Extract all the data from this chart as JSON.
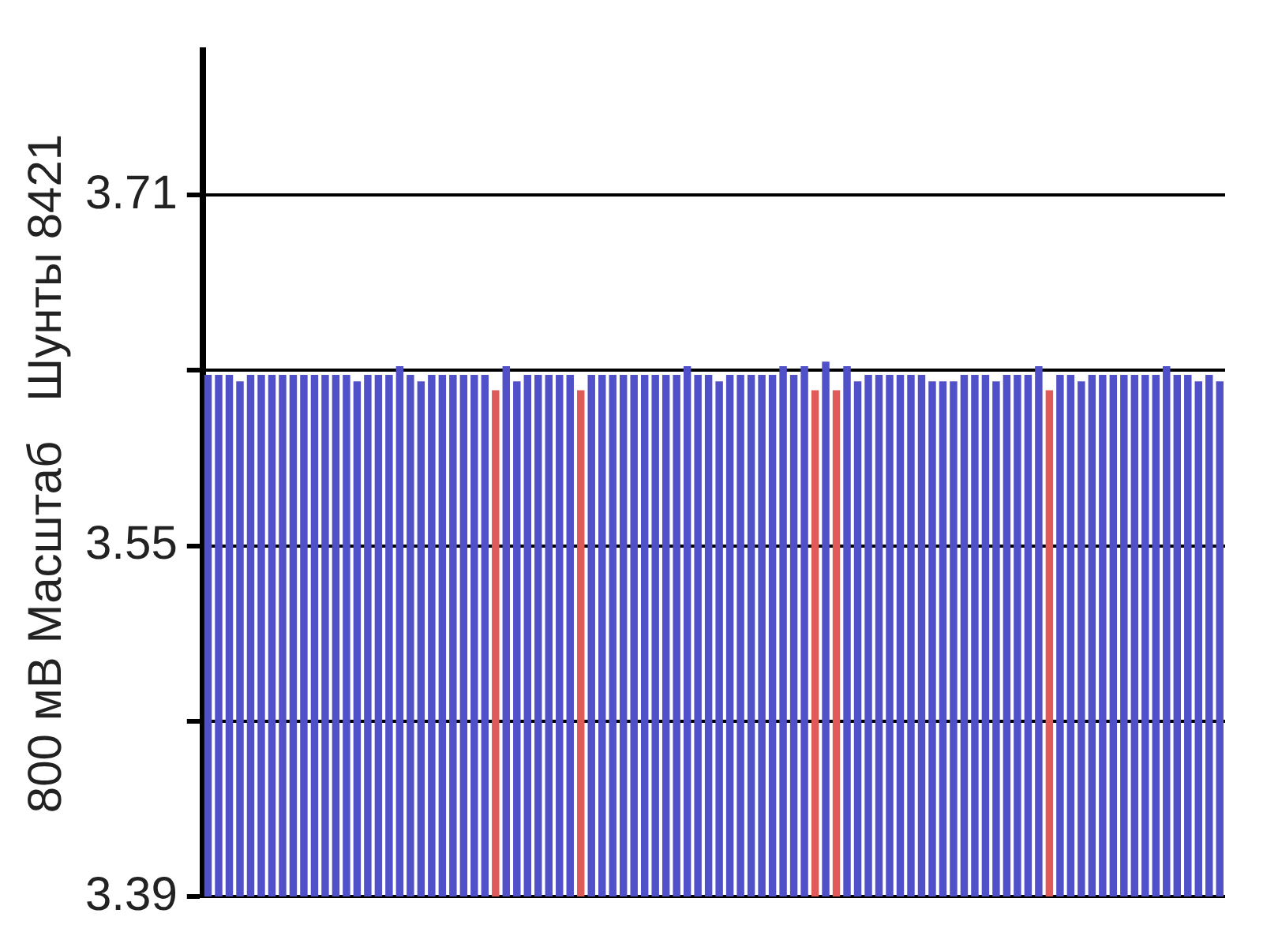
{
  "chart_data": {
    "type": "bar",
    "ylabel": "800 мВ Масштаб   Шунты 8421",
    "categories": [
      null,
      null,
      null,
      null,
      null,
      null,
      null,
      null,
      null,
      null,
      null,
      null,
      null,
      null,
      null,
      null,
      null,
      null,
      null,
      null,
      null,
      null,
      null,
      null,
      null,
      null,
      null,
      null,
      null,
      null,
      null,
      null,
      null,
      null,
      null,
      null,
      null,
      null,
      null,
      null,
      null,
      null,
      null,
      null,
      null,
      null,
      null,
      null,
      null,
      null,
      null,
      null,
      null,
      null,
      null,
      null,
      null,
      null,
      null,
      null,
      null,
      null,
      null,
      null,
      null,
      null,
      null,
      null,
      null,
      null,
      null,
      null,
      null,
      null,
      null,
      null,
      null,
      null,
      null,
      null,
      null,
      null,
      null,
      null,
      null,
      null,
      null,
      null,
      null,
      null,
      null,
      null,
      null,
      null,
      null,
      null
    ],
    "values": [
      3.628,
      3.628,
      3.628,
      3.625,
      3.628,
      3.628,
      3.628,
      3.628,
      3.628,
      3.628,
      3.628,
      3.628,
      3.628,
      3.628,
      3.625,
      3.628,
      3.628,
      3.628,
      3.632,
      3.628,
      3.625,
      3.628,
      3.628,
      3.628,
      3.628,
      3.628,
      3.628,
      3.621,
      3.632,
      3.625,
      3.628,
      3.628,
      3.628,
      3.628,
      3.628,
      3.621,
      3.628,
      3.628,
      3.628,
      3.628,
      3.628,
      3.628,
      3.628,
      3.628,
      3.628,
      3.632,
      3.628,
      3.628,
      3.625,
      3.628,
      3.628,
      3.628,
      3.628,
      3.628,
      3.632,
      3.628,
      3.632,
      3.621,
      3.634,
      3.621,
      3.632,
      3.625,
      3.628,
      3.628,
      3.628,
      3.628,
      3.628,
      3.628,
      3.625,
      3.625,
      3.625,
      3.628,
      3.628,
      3.628,
      3.625,
      3.628,
      3.628,
      3.628,
      3.632,
      3.621,
      3.628,
      3.628,
      3.625,
      3.628,
      3.628,
      3.628,
      3.628,
      3.628,
      3.628,
      3.628,
      3.632,
      3.628,
      3.628,
      3.625,
      3.628,
      3.625
    ],
    "colors": [
      "#5050c8",
      "#5050c8",
      "#5050c8",
      "#5050c8",
      "#5050c8",
      "#5050c8",
      "#5050c8",
      "#5050c8",
      "#5050c8",
      "#5050c8",
      "#5050c8",
      "#5050c8",
      "#5050c8",
      "#5050c8",
      "#5050c8",
      "#5050c8",
      "#5050c8",
      "#5050c8",
      "#5050c8",
      "#5050c8",
      "#5050c8",
      "#5050c8",
      "#5050c8",
      "#5050c8",
      "#5050c8",
      "#5050c8",
      "#5050c8",
      "#e05a5a",
      "#5050c8",
      "#5050c8",
      "#5050c8",
      "#5050c8",
      "#5050c8",
      "#5050c8",
      "#5050c8",
      "#e05a5a",
      "#5050c8",
      "#5050c8",
      "#5050c8",
      "#5050c8",
      "#5050c8",
      "#5050c8",
      "#5050c8",
      "#5050c8",
      "#5050c8",
      "#5050c8",
      "#5050c8",
      "#5050c8",
      "#5050c8",
      "#5050c8",
      "#5050c8",
      "#5050c8",
      "#5050c8",
      "#5050c8",
      "#5050c8",
      "#5050c8",
      "#5050c8",
      "#e05a5a",
      "#5050c8",
      "#e05a5a",
      "#5050c8",
      "#5050c8",
      "#5050c8",
      "#5050c8",
      "#5050c8",
      "#5050c8",
      "#5050c8",
      "#5050c8",
      "#5050c8",
      "#5050c8",
      "#5050c8",
      "#5050c8",
      "#5050c8",
      "#5050c8",
      "#5050c8",
      "#5050c8",
      "#5050c8",
      "#5050c8",
      "#5050c8",
      "#e05a5a",
      "#5050c8",
      "#5050c8",
      "#5050c8",
      "#5050c8",
      "#5050c8",
      "#5050c8",
      "#5050c8",
      "#5050c8",
      "#5050c8",
      "#5050c8",
      "#5050c8",
      "#5050c8",
      "#5050c8",
      "#5050c8",
      "#5050c8",
      "#5050c8"
    ],
    "ylim": [
      3.39,
      3.776
    ],
    "yticks": [
      3.71,
      {
        "value": 3.63,
        "label": null
      },
      3.55,
      {
        "value": 3.47,
        "label": null
      },
      3.39
    ],
    "grid": "y",
    "tick_labels": "y",
    "legend": false
  }
}
